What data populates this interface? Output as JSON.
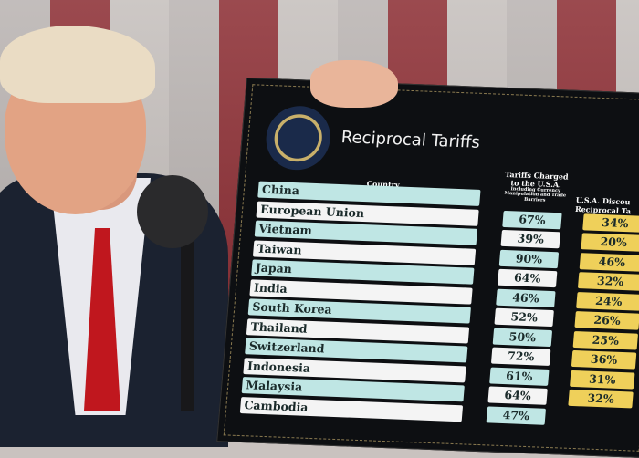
{
  "board": {
    "title": "Reciprocal Tariffs",
    "seal_text": "SEAL OF THE PRESIDENT OF THE UNITED STATES",
    "headers": {
      "country": "Country",
      "tariffs_charged": "Tariffs Charged to the U.S.A.",
      "tariffs_charged_note": "Including Currency Manipulation and Trade Barriers",
      "discounted": "U.S.A. Discou",
      "discounted_line2": "Reciprocal Ta"
    },
    "rows": [
      {
        "country": "China",
        "charged": "",
        "discounted": ""
      },
      {
        "country": "European Union",
        "charged": "67%",
        "discounted": "34%"
      },
      {
        "country": "Vietnam",
        "charged": "39%",
        "discounted": "20%"
      },
      {
        "country": "Taiwan",
        "charged": "90%",
        "discounted": "46%"
      },
      {
        "country": "Japan",
        "charged": "64%",
        "discounted": "32%"
      },
      {
        "country": "India",
        "charged": "46%",
        "discounted": "24%"
      },
      {
        "country": "South Korea",
        "charged": "52%",
        "discounted": "26%"
      },
      {
        "country": "Thailand",
        "charged": "50%",
        "discounted": "25%"
      },
      {
        "country": "Switzerland",
        "charged": "72%",
        "discounted": "36%"
      },
      {
        "country": "Indonesia",
        "charged": "61%",
        "discounted": "31%"
      },
      {
        "country": "Malaysia",
        "charged": "64%",
        "discounted": "32%"
      },
      {
        "country": "Cambodia",
        "charged": "47%",
        "discounted": ""
      }
    ],
    "colors": {
      "teal": "#bfe6e4",
      "white": "#f4f4f4",
      "yellow": "#efd05a",
      "board": "#0d0f12"
    }
  }
}
